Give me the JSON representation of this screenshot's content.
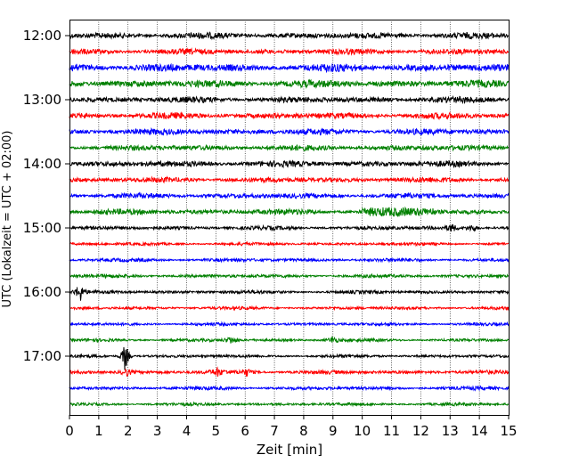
{
  "chart_data": {
    "type": "line",
    "title": "",
    "xlabel": "Zeit  [min]",
    "ylabel": "UTC (Lokalzeit = UTC + 02:00)",
    "xlim": [
      0,
      15
    ],
    "x_ticks": [
      "0",
      "1",
      "2",
      "3",
      "4",
      "5",
      "6",
      "7",
      "8",
      "9",
      "10",
      "11",
      "12",
      "13",
      "14",
      "15"
    ],
    "y_ticks": [
      "12:00",
      "13:00",
      "14:00",
      "15:00",
      "16:00",
      "17:00"
    ],
    "grid": "vertical dotted",
    "trace_interval_min": 15,
    "trace_colors": [
      "#000000",
      "#ff0000",
      "#0000ff",
      "#008000"
    ],
    "traces": [
      {
        "start": "12:00",
        "color": "#000000",
        "amplitude": 2.8
      },
      {
        "start": "12:15",
        "color": "#ff0000",
        "amplitude": 2.6
      },
      {
        "start": "12:30",
        "color": "#0000ff",
        "amplitude": 3.6
      },
      {
        "start": "12:45",
        "color": "#008000",
        "amplitude": 3.4
      },
      {
        "start": "13:00",
        "color": "#000000",
        "amplitude": 2.8
      },
      {
        "start": "13:15",
        "color": "#ff0000",
        "amplitude": 2.8
      },
      {
        "start": "13:30",
        "color": "#0000ff",
        "amplitude": 2.8
      },
      {
        "start": "13:45",
        "color": "#008000",
        "amplitude": 2.6
      },
      {
        "start": "14:00",
        "color": "#000000",
        "amplitude": 2.8
      },
      {
        "start": "14:15",
        "color": "#ff0000",
        "amplitude": 2.4
      },
      {
        "start": "14:30",
        "color": "#0000ff",
        "amplitude": 2.4
      },
      {
        "start": "14:45",
        "color": "#008000",
        "amplitude": 2.6
      },
      {
        "start": "15:00",
        "color": "#000000",
        "amplitude": 1.8
      },
      {
        "start": "15:15",
        "color": "#ff0000",
        "amplitude": 1.4
      },
      {
        "start": "15:30",
        "color": "#0000ff",
        "amplitude": 1.6
      },
      {
        "start": "15:45",
        "color": "#008000",
        "amplitude": 1.6
      },
      {
        "start": "16:00",
        "color": "#000000",
        "amplitude": 1.6
      },
      {
        "start": "16:15",
        "color": "#ff0000",
        "amplitude": 1.4
      },
      {
        "start": "16:30",
        "color": "#0000ff",
        "amplitude": 1.4
      },
      {
        "start": "16:45",
        "color": "#008000",
        "amplitude": 1.4
      },
      {
        "start": "17:00",
        "color": "#000000",
        "amplitude": 1.4
      },
      {
        "start": "17:15",
        "color": "#ff0000",
        "amplitude": 1.8
      },
      {
        "start": "17:30",
        "color": "#0000ff",
        "amplitude": 1.6
      },
      {
        "start": "17:45",
        "color": "#008000",
        "amplitude": 1.4
      }
    ],
    "events": [
      {
        "trace": 16,
        "time_min": 0.35,
        "type": "spike"
      },
      {
        "trace": 20,
        "time_min": 1.9,
        "type": "spike"
      },
      {
        "trace": 21,
        "time_min": 1.95,
        "type": "burst"
      },
      {
        "trace": 21,
        "time_min": 5.05,
        "type": "burst"
      },
      {
        "trace": 21,
        "time_min": 6.05,
        "type": "burst"
      },
      {
        "trace": 12,
        "time_min": 13.75,
        "type": "burst"
      },
      {
        "trace": 12,
        "time_min": 13.05,
        "type": "burst"
      },
      {
        "trace": 19,
        "time_min": 5.5,
        "type": "burst"
      },
      {
        "trace": 19,
        "time_min": 9.0,
        "type": "burst"
      },
      {
        "trace": 11,
        "time_min": 10.0,
        "type": "segment",
        "end_min": 12.5
      }
    ]
  }
}
